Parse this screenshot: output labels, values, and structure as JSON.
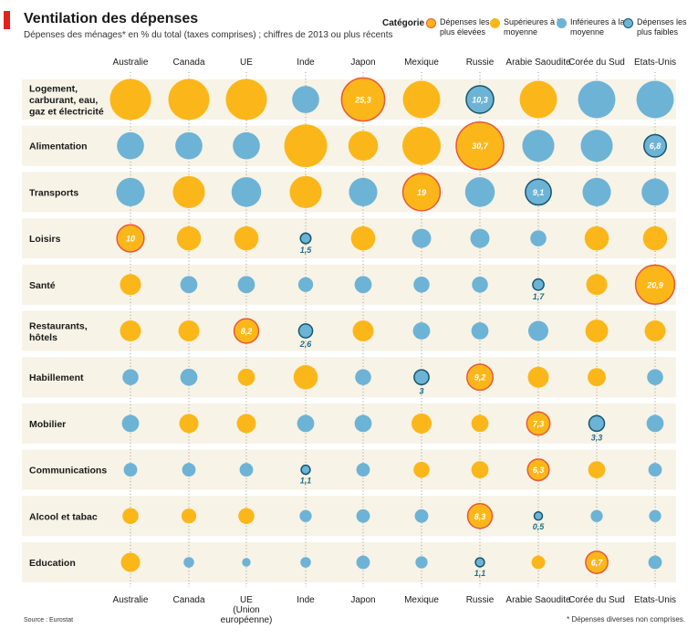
{
  "header": {
    "title": "Ventilation des dépenses",
    "subtitle": "Dépenses des ménages* en % du total (taxes comprises) ; chiffres de 2013 ou plus récents"
  },
  "legend": {
    "title": "Catégorie",
    "items": [
      {
        "label": "Dépenses les plus élevées",
        "category": "highest"
      },
      {
        "label": "Supérieures à la moyenne",
        "category": "above"
      },
      {
        "label": "Inférieures à la moyenne",
        "category": "below"
      },
      {
        "label": "Dépenses les plus faibles",
        "category": "lowest"
      }
    ]
  },
  "colors": {
    "above_fill": "#fbb71a",
    "below_fill": "#6db3d6",
    "highest_stroke": "#e8573a",
    "lowest_stroke": "#14576e",
    "row_band": "#f7f3e6",
    "label_text": "#ffffff",
    "low_label_text": "#1d6f8c"
  },
  "footer": {
    "source": "Source : Eurostat",
    "footnote": "* Dépenses diverses non comprises."
  },
  "chart_data": {
    "type": "bubble-matrix",
    "title": "Ventilation des dépenses",
    "columns": [
      "Australie",
      "Canada",
      "UE",
      "Inde",
      "Japon",
      "Mexique",
      "Russie",
      "Arabie Saoudite",
      "Corée du Sud",
      "Etats-Unis"
    ],
    "bottom_columns": [
      "Australie",
      "Canada",
      "UE (Union européenne)",
      "Inde",
      "Japon",
      "Mexique",
      "Russie",
      "Arabie Saoudite",
      "Corée du Sud",
      "Etats-Unis"
    ],
    "rows": [
      "Logement, carburant, eau, gaz et électricité",
      "Alimentation",
      "Transports",
      "Loisirs",
      "Santé",
      "Restaurants, hôtels",
      "Habillement",
      "Mobilier",
      "Communications",
      "Alcool et tabac",
      "Education"
    ],
    "size_estimates": [
      [
        23,
        23,
        23,
        10,
        25.3,
        19,
        10.3,
        19,
        19,
        19
      ],
      [
        10,
        10,
        10,
        25,
        12,
        20,
        30.7,
        14,
        14,
        6.8
      ],
      [
        11,
        14,
        12,
        14,
        11,
        19,
        12,
        9.1,
        11,
        10
      ],
      [
        10,
        8,
        8,
        1.5,
        8,
        5,
        5,
        3.5,
        8,
        8
      ],
      [
        6,
        4,
        4,
        3,
        4,
        3.5,
        3.5,
        1.7,
        6,
        20.9
      ],
      [
        6,
        6,
        8.2,
        2.6,
        6,
        4,
        4,
        5.5,
        7,
        6
      ],
      [
        3.5,
        4,
        4,
        8,
        3.5,
        3,
        9.2,
        6,
        4.5,
        3.5
      ],
      [
        4,
        5,
        5,
        4,
        4,
        5.5,
        4,
        7.3,
        3.3,
        4
      ],
      [
        2.5,
        2.5,
        2.5,
        1.1,
        2.5,
        3.5,
        4,
        6.3,
        4,
        2.5
      ],
      [
        3.5,
        3,
        3.5,
        2,
        2.5,
        2.5,
        8.3,
        0.5,
        2,
        2
      ],
      [
        5,
        1.5,
        1,
        1.5,
        2.5,
        2,
        1.1,
        2.5,
        6.7,
        2.5
      ]
    ],
    "categories": [
      [
        "above",
        "above",
        "above",
        "below",
        "highest",
        "above",
        "lowest",
        "above",
        "below",
        "below"
      ],
      [
        "below",
        "below",
        "below",
        "above",
        "above",
        "above",
        "highest",
        "below",
        "below",
        "lowest"
      ],
      [
        "below",
        "above",
        "below",
        "above",
        "below",
        "highest",
        "below",
        "lowest",
        "below",
        "below"
      ],
      [
        "highest",
        "above",
        "above",
        "lowest",
        "above",
        "below",
        "below",
        "below",
        "above",
        "above"
      ],
      [
        "above",
        "below",
        "below",
        "below",
        "below",
        "below",
        "below",
        "lowest",
        "above",
        "highest"
      ],
      [
        "above",
        "above",
        "highest",
        "lowest",
        "above",
        "below",
        "below",
        "below",
        "above",
        "above"
      ],
      [
        "below",
        "below",
        "above",
        "above",
        "below",
        "lowest",
        "highest",
        "above",
        "above",
        "below"
      ],
      [
        "below",
        "above",
        "above",
        "below",
        "below",
        "above",
        "above",
        "highest",
        "lowest",
        "below"
      ],
      [
        "below",
        "below",
        "below",
        "lowest",
        "below",
        "above",
        "above",
        "highest",
        "above",
        "below"
      ],
      [
        "above",
        "above",
        "above",
        "below",
        "below",
        "below",
        "highest",
        "lowest",
        "below",
        "below"
      ],
      [
        "above",
        "below",
        "below",
        "below",
        "below",
        "below",
        "lowest",
        "above",
        "highest",
        "below"
      ]
    ],
    "value_labels": [
      [
        null,
        null,
        null,
        null,
        "25,3",
        null,
        "10,3",
        null,
        null,
        null
      ],
      [
        null,
        null,
        null,
        null,
        null,
        null,
        "30,7",
        null,
        null,
        "6,8"
      ],
      [
        null,
        null,
        null,
        null,
        null,
        "19",
        null,
        "9,1",
        null,
        null
      ],
      [
        "10",
        null,
        null,
        "1,5",
        null,
        null,
        null,
        null,
        null,
        null
      ],
      [
        null,
        null,
        null,
        null,
        null,
        null,
        null,
        "1,7",
        null,
        "20,9"
      ],
      [
        null,
        null,
        "8,2",
        "2,6",
        null,
        null,
        null,
        null,
        null,
        null
      ],
      [
        null,
        null,
        null,
        null,
        null,
        "3",
        "9,2",
        null,
        null,
        null
      ],
      [
        null,
        null,
        null,
        null,
        null,
        null,
        null,
        "7,3",
        "3,3",
        null
      ],
      [
        null,
        null,
        null,
        "1,1",
        null,
        null,
        null,
        "6,3",
        null,
        null
      ],
      [
        null,
        null,
        null,
        null,
        null,
        null,
        "8,3",
        "0,5",
        null,
        null
      ],
      [
        null,
        null,
        null,
        null,
        null,
        null,
        "1,1",
        null,
        "6,7",
        null
      ]
    ],
    "grid": false,
    "legend_position": "top-right"
  }
}
